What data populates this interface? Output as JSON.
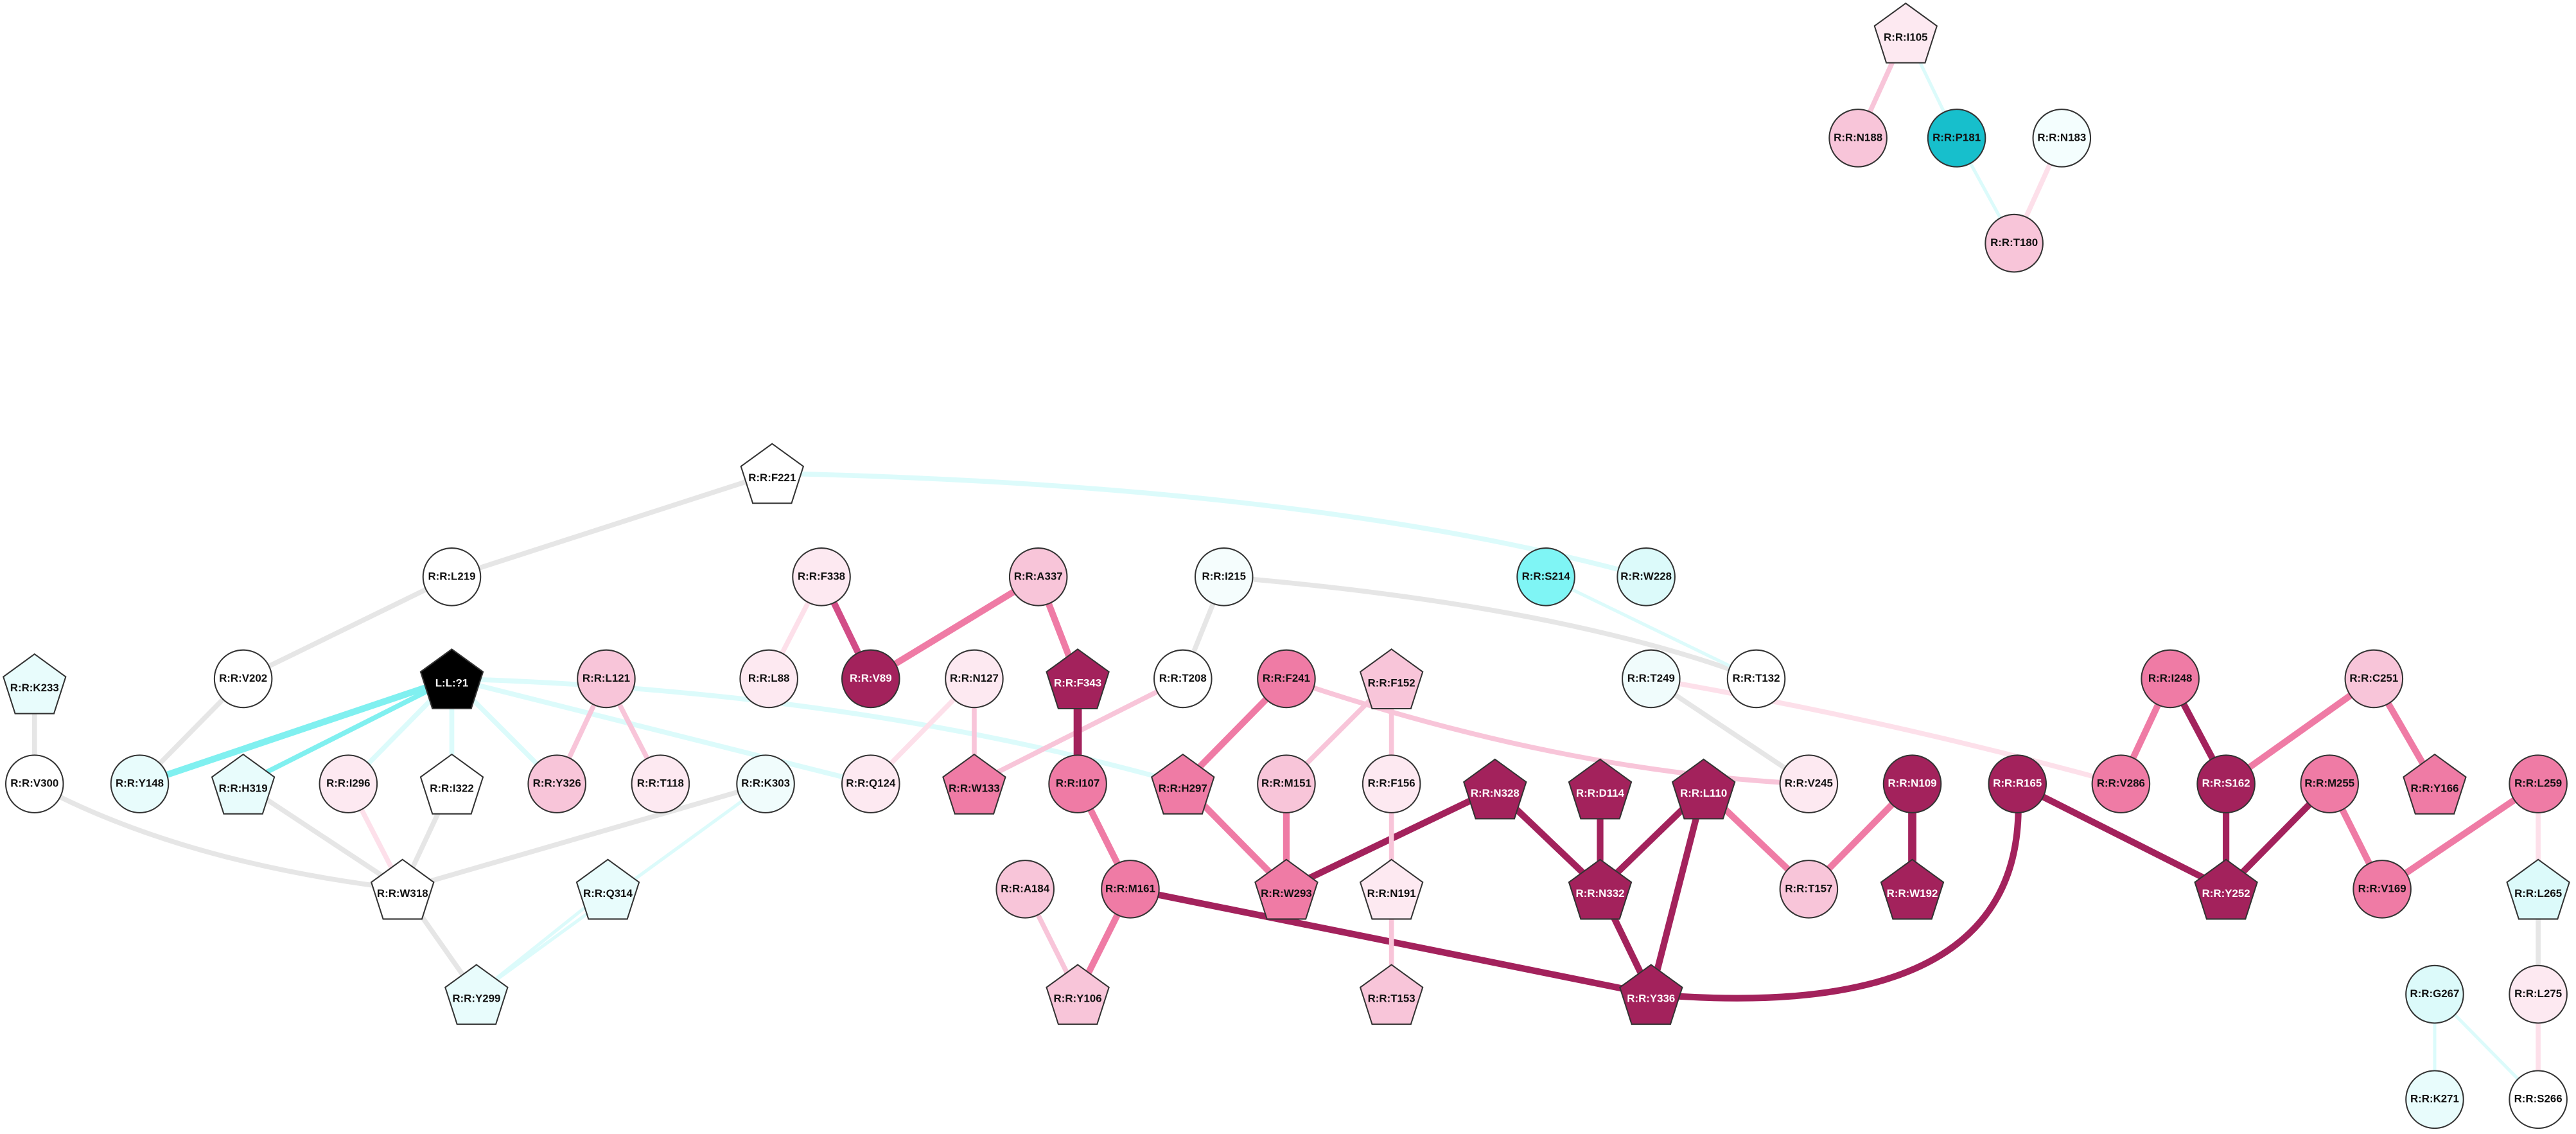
{
  "nodes": [
    "R:R:I105",
    "R:R:N188",
    "R:R:P181",
    "R:R:N183",
    "R:R:T180",
    "R:R:F221",
    "R:R:L219",
    "R:R:F338",
    "R:R:A337",
    "R:R:I215",
    "R:R:S214",
    "R:R:W228",
    "R:R:K233",
    "R:R:V202",
    "L:L:?1",
    "R:R:L121",
    "R:R:L88",
    "R:R:V89",
    "R:R:N127",
    "R:R:F343",
    "R:R:T208",
    "R:R:F241",
    "R:R:F152",
    "R:R:T249",
    "R:R:T132",
    "R:R:I248",
    "R:R:C251",
    "R:R:V300",
    "R:R:Y148",
    "R:R:H319",
    "R:R:I296",
    "R:R:I322",
    "R:R:Y326",
    "R:R:T118",
    "R:R:K303",
    "R:R:Q124",
    "R:R:W133",
    "R:R:I107",
    "R:R:H297",
    "R:R:M151",
    "R:R:F156",
    "R:R:N328",
    "R:R:D114",
    "R:R:L110",
    "R:R:V245",
    "R:R:N109",
    "R:R:R165",
    "R:R:V286",
    "R:R:S162",
    "R:R:M255",
    "R:R:Y166",
    "R:R:L259",
    "R:R:W318",
    "R:R:Q314",
    "R:R:A184",
    "R:R:M161",
    "R:R:W293",
    "R:R:N191",
    "R:R:N332",
    "R:R:T157",
    "R:R:W192",
    "R:R:Y252",
    "R:R:V169",
    "R:R:L265",
    "R:R:Y299",
    "R:R:Y106",
    "R:R:T153",
    "R:R:Y336",
    "R:R:G267",
    "R:R:L275",
    "R:R:K271",
    "R:R:S266"
  ]
}
